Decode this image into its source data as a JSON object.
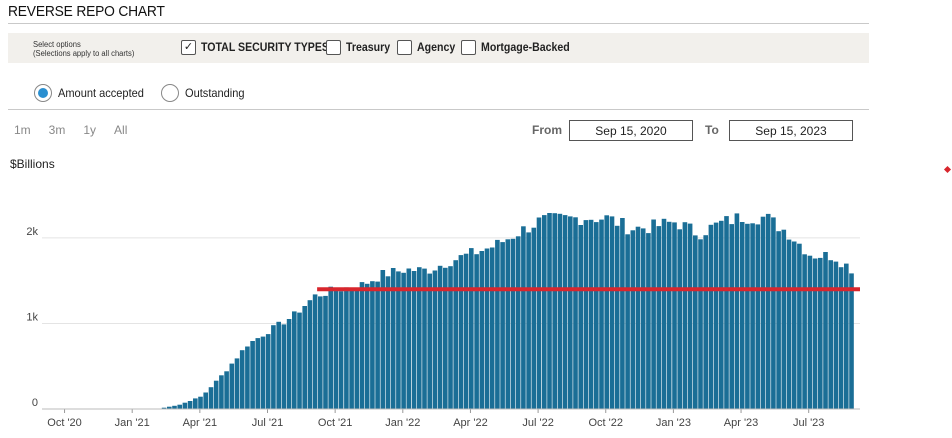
{
  "title": "REVERSE REPO CHART",
  "options": {
    "label_line1": "Select options",
    "label_line2": "(Selections apply to all charts)",
    "checkboxes": [
      {
        "label": "TOTAL SECURITY TYPES",
        "checked": true
      },
      {
        "label": "Treasury",
        "checked": false
      },
      {
        "label": "Agency",
        "checked": false
      },
      {
        "label": "Mortgage-Backed",
        "checked": false
      }
    ]
  },
  "radios": [
    {
      "label": "Amount accepted",
      "selected": true
    },
    {
      "label": "Outstanding",
      "selected": false
    }
  ],
  "ranges": [
    "1m",
    "3m",
    "1y",
    "All"
  ],
  "date_range": {
    "from_label": "From",
    "from": "Sep 15, 2020",
    "to_label": "To",
    "to": "Sep 15, 2023"
  },
  "colors": {
    "bar": "#1a6e96",
    "reference_line": "#d8262d",
    "accent": "#2a8fd0"
  },
  "chart_data": {
    "type": "bar",
    "ylabel": "$Billions",
    "ylim": [
      0,
      2700
    ],
    "yticks": [
      {
        "label": "0",
        "value": 0
      },
      {
        "label": "1k",
        "value": 1000
      },
      {
        "label": "2k",
        "value": 2000
      }
    ],
    "xticks": [
      "Oct '20",
      "Jan '21",
      "Apr '21",
      "Jul '21",
      "Oct '21",
      "Jan '22",
      "Apr '22",
      "Jul '22",
      "Oct '22",
      "Jan '23",
      "Apr '23",
      "Jul '23"
    ],
    "x_start": "Sep 15, 2020",
    "series": [
      {
        "monthly_approx": [
          {
            "month": "Sep '20",
            "value": 0
          },
          {
            "month": "Oct '20",
            "value": 0
          },
          {
            "month": "Nov '20",
            "value": 0
          },
          {
            "month": "Dec '20",
            "value": 0
          },
          {
            "month": "Jan '21",
            "value": 0
          },
          {
            "month": "Feb '21",
            "value": 0
          },
          {
            "month": "Mar '21",
            "value": 50
          },
          {
            "month": "Apr '21",
            "value": 150
          },
          {
            "month": "May '21",
            "value": 430
          },
          {
            "month": "Jun '21",
            "value": 750
          },
          {
            "month": "Jul '21",
            "value": 920
          },
          {
            "month": "Aug '21",
            "value": 1080
          },
          {
            "month": "Sep '21",
            "value": 1320
          },
          {
            "month": "Oct '21",
            "value": 1400
          },
          {
            "month": "Nov '21",
            "value": 1440
          },
          {
            "month": "Dec '21",
            "value": 1570
          },
          {
            "month": "Jan '22",
            "value": 1630
          },
          {
            "month": "Feb '22",
            "value": 1620
          },
          {
            "month": "Mar '22",
            "value": 1730
          },
          {
            "month": "Apr '22",
            "value": 1820
          },
          {
            "month": "May '22",
            "value": 1910
          },
          {
            "month": "Jun '22",
            "value": 2060
          },
          {
            "month": "Jul '22",
            "value": 2200
          },
          {
            "month": "Aug '22",
            "value": 2220
          },
          {
            "month": "Sep '22",
            "value": 2240
          },
          {
            "month": "Oct '22",
            "value": 2230
          },
          {
            "month": "Nov '22",
            "value": 2110
          },
          {
            "month": "Dec '22",
            "value": 2130
          },
          {
            "month": "Jan '23",
            "value": 2190
          },
          {
            "month": "Feb '23",
            "value": 2050
          },
          {
            "month": "Mar '23",
            "value": 2170
          },
          {
            "month": "Apr '23",
            "value": 2250
          },
          {
            "month": "May '23",
            "value": 2240
          },
          {
            "month": "Jun '23",
            "value": 2060
          },
          {
            "month": "Jul '23",
            "value": 1800
          },
          {
            "month": "Aug '23",
            "value": 1790
          },
          {
            "month": "Sep '23",
            "value": 1600
          }
        ]
      }
    ],
    "reference_line": {
      "value": 1400,
      "from": "Sep '21",
      "to": "Sep 15, 2023"
    }
  }
}
